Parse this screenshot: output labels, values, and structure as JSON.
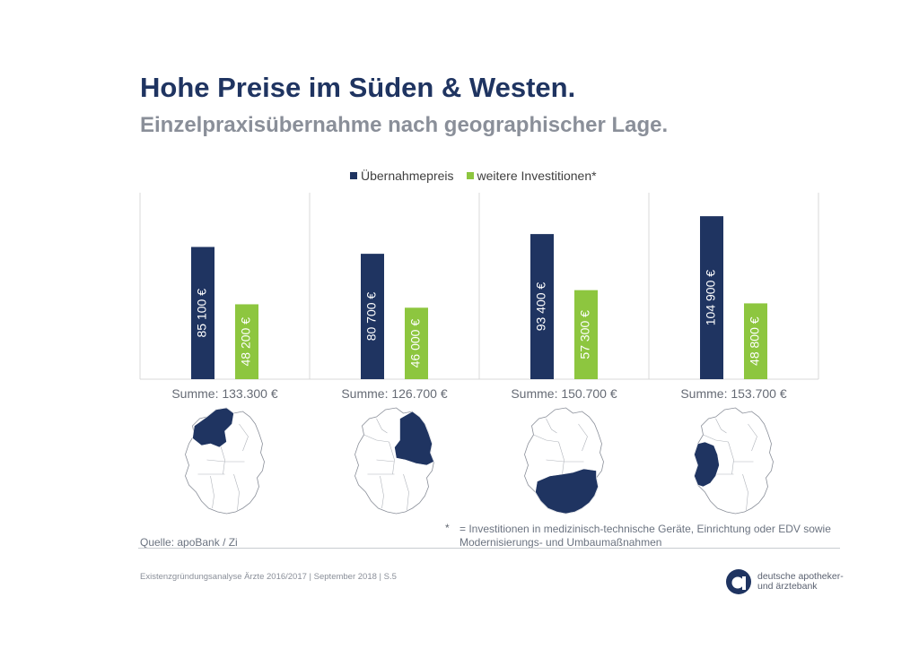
{
  "title": "Hohe Preise im Süden & Westen.",
  "subtitle": "Einzelpraxisübernahme nach geographischer Lage.",
  "colors": {
    "navy": "#1f3461",
    "green": "#8dc63f",
    "grid": "#d9d9d9",
    "region": "#1f3461"
  },
  "chart_data": {
    "type": "bar",
    "categories": [
      "Nord",
      "Ost",
      "Süd",
      "West"
    ],
    "series": [
      {
        "name": "Übernahmepreis",
        "values": [
          85100,
          80700,
          93400,
          104900
        ],
        "labels": [
          "85 100 €",
          "80 700 €",
          "93 400 €",
          "104 900 €"
        ]
      },
      {
        "name": "weitere Investitionen*",
        "values": [
          48200,
          46000,
          57300,
          48800
        ],
        "labels": [
          "48 200 €",
          "46 000 €",
          "57 300 €",
          "48 800 €"
        ]
      }
    ],
    "sums": [
      "Summe: 133.300 €",
      "Summe: 126.700 €",
      "Summe: 150.700 €",
      "Summe: 153.700 €"
    ],
    "ylim": [
      0,
      120000
    ],
    "legend_position": "top-center",
    "grid": false
  },
  "footnote": {
    "star": "*",
    "text": "= Investitionen in medizinisch-technische Geräte, Einrichtung oder EDV sowie Modernisierungs- und Umbaumaßnahmen"
  },
  "source": "Quelle: apoBank / Zi",
  "footer": "Existenzgründungsanalyse Ärzte  2016/2017 | September 2018 | S.5",
  "logo": {
    "line1": "deutsche apotheker-",
    "line2": "und ärztebank"
  }
}
